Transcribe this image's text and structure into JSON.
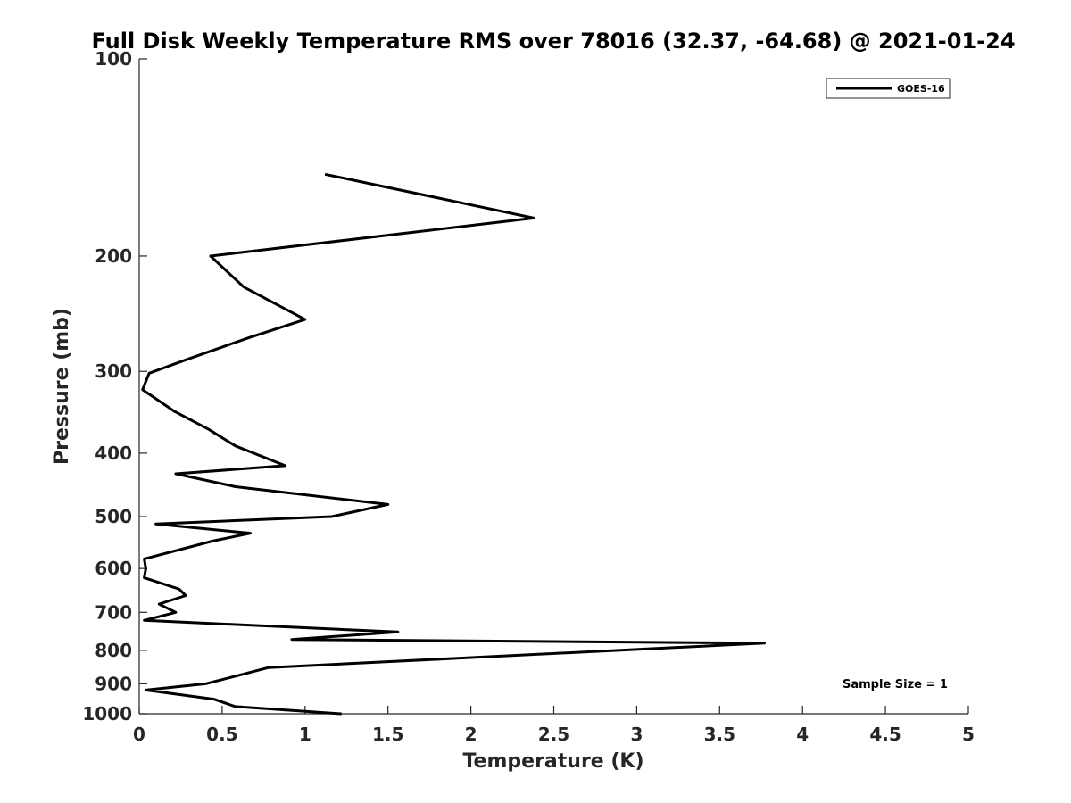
{
  "chart_data": {
    "type": "line",
    "title": "Full Disk Weekly Temperature RMS over 78016 (32.37, -64.68) @ 2021-01-24",
    "xlabel": "Temperature (K)",
    "ylabel": "Pressure (mb)",
    "xlim": [
      0,
      5
    ],
    "ylim": [
      100,
      1000
    ],
    "y_scale": "log",
    "y_reversed": true,
    "xticks": [
      0,
      0.5,
      1,
      1.5,
      2,
      2.5,
      3,
      3.5,
      4,
      4.5,
      5
    ],
    "xtick_labels": [
      "0",
      "0.5",
      "1",
      "1.5",
      "2",
      "2.5",
      "3",
      "3.5",
      "4",
      "4.5",
      "5"
    ],
    "yticks": [
      100,
      200,
      300,
      400,
      500,
      600,
      700,
      800,
      900,
      1000
    ],
    "ytick_labels": [
      "100",
      "200",
      "300",
      "400",
      "500",
      "600",
      "700",
      "800",
      "900",
      "1000"
    ],
    "grid": false,
    "legend_position": "top-right",
    "annotation": "Sample Size = 1",
    "series": [
      {
        "name": "GOES-16",
        "color": "#000000",
        "points": [
          {
            "x": 1.12,
            "y": 150
          },
          {
            "x": 2.38,
            "y": 175
          },
          {
            "x": 0.43,
            "y": 200
          },
          {
            "x": 0.63,
            "y": 223
          },
          {
            "x": 1.0,
            "y": 250
          },
          {
            "x": 0.67,
            "y": 266
          },
          {
            "x": 0.3,
            "y": 287
          },
          {
            "x": 0.06,
            "y": 302
          },
          {
            "x": 0.02,
            "y": 320
          },
          {
            "x": 0.21,
            "y": 345
          },
          {
            "x": 0.42,
            "y": 368
          },
          {
            "x": 0.58,
            "y": 390
          },
          {
            "x": 0.88,
            "y": 418
          },
          {
            "x": 0.22,
            "y": 430
          },
          {
            "x": 0.58,
            "y": 450
          },
          {
            "x": 1.5,
            "y": 479
          },
          {
            "x": 1.16,
            "y": 500
          },
          {
            "x": 0.1,
            "y": 513
          },
          {
            "x": 0.67,
            "y": 530
          },
          {
            "x": 0.44,
            "y": 545
          },
          {
            "x": 0.03,
            "y": 580
          },
          {
            "x": 0.04,
            "y": 600
          },
          {
            "x": 0.03,
            "y": 620
          },
          {
            "x": 0.24,
            "y": 645
          },
          {
            "x": 0.28,
            "y": 660
          },
          {
            "x": 0.12,
            "y": 680
          },
          {
            "x": 0.22,
            "y": 700
          },
          {
            "x": 0.03,
            "y": 720
          },
          {
            "x": 1.56,
            "y": 750
          },
          {
            "x": 0.92,
            "y": 770
          },
          {
            "x": 3.77,
            "y": 780
          },
          {
            "x": 0.78,
            "y": 850
          },
          {
            "x": 0.55,
            "y": 880
          },
          {
            "x": 0.4,
            "y": 900
          },
          {
            "x": 0.04,
            "y": 920
          },
          {
            "x": 0.45,
            "y": 950
          },
          {
            "x": 0.58,
            "y": 975
          },
          {
            "x": 1.22,
            "y": 1000
          }
        ]
      }
    ]
  }
}
